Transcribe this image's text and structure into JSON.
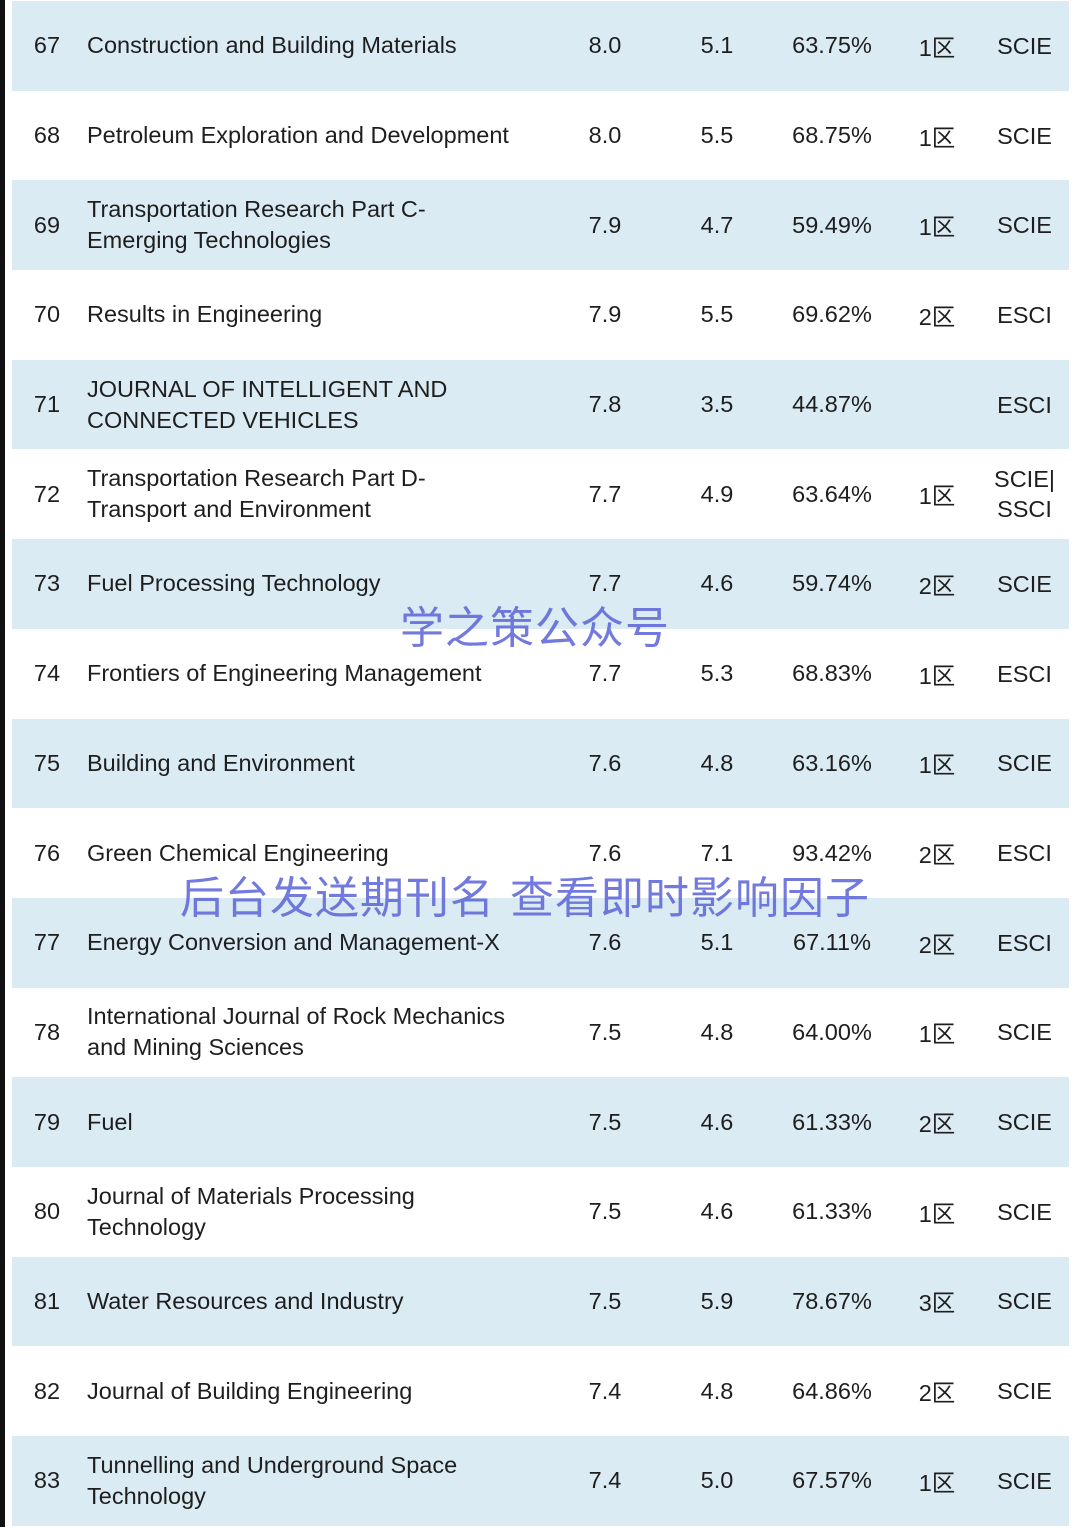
{
  "rows": [
    {
      "rank": "67",
      "name": "Construction and Building Materials",
      "if": "8.0",
      "if5": "5.1",
      "pct": "63.75%",
      "zone": "1区",
      "index": "SCIE"
    },
    {
      "rank": "68",
      "name": "Petroleum Exploration and Development",
      "if": "8.0",
      "if5": "5.5",
      "pct": "68.75%",
      "zone": "1区",
      "index": "SCIE"
    },
    {
      "rank": "69",
      "name": "Transportation Research Part C-\nEmerging Technologies",
      "if": "7.9",
      "if5": "4.7",
      "pct": "59.49%",
      "zone": "1区",
      "index": "SCIE"
    },
    {
      "rank": "70",
      "name": "Results in Engineering",
      "if": "7.9",
      "if5": "5.5",
      "pct": "69.62%",
      "zone": "2区",
      "index": "ESCI"
    },
    {
      "rank": "71",
      "name": "JOURNAL OF INTELLIGENT AND\nCONNECTED VEHICLES",
      "if": "7.8",
      "if5": "3.5",
      "pct": "44.87%",
      "zone": "",
      "index": "ESCI"
    },
    {
      "rank": "72",
      "name": "Transportation Research Part D-\nTransport and Environment",
      "if": "7.7",
      "if5": "4.9",
      "pct": "63.64%",
      "zone": "1区",
      "index": "SCIE|\nSSCI"
    },
    {
      "rank": "73",
      "name": "Fuel Processing Technology",
      "if": "7.7",
      "if5": "4.6",
      "pct": "59.74%",
      "zone": "2区",
      "index": "SCIE"
    },
    {
      "rank": "74",
      "name": "Frontiers of Engineering Management",
      "if": "7.7",
      "if5": "5.3",
      "pct": "68.83%",
      "zone": "1区",
      "index": "ESCI"
    },
    {
      "rank": "75",
      "name": "Building and Environment",
      "if": "7.6",
      "if5": "4.8",
      "pct": "63.16%",
      "zone": "1区",
      "index": "SCIE"
    },
    {
      "rank": "76",
      "name": "Green Chemical Engineering",
      "if": "7.6",
      "if5": "7.1",
      "pct": "93.42%",
      "zone": "2区",
      "index": "ESCI"
    },
    {
      "rank": "77",
      "name": "Energy Conversion and Management-X",
      "if": "7.6",
      "if5": "5.1",
      "pct": "67.11%",
      "zone": "2区",
      "index": "ESCI"
    },
    {
      "rank": "78",
      "name": "International Journal of Rock Mechanics\nand Mining Sciences",
      "if": "7.5",
      "if5": "4.8",
      "pct": "64.00%",
      "zone": "1区",
      "index": "SCIE"
    },
    {
      "rank": "79",
      "name": "Fuel",
      "if": "7.5",
      "if5": "4.6",
      "pct": "61.33%",
      "zone": "2区",
      "index": "SCIE"
    },
    {
      "rank": "80",
      "name": "Journal of Materials Processing\nTechnology",
      "if": "7.5",
      "if5": "4.6",
      "pct": "61.33%",
      "zone": "1区",
      "index": "SCIE"
    },
    {
      "rank": "81",
      "name": "Water Resources and Industry",
      "if": "7.5",
      "if5": "5.9",
      "pct": "78.67%",
      "zone": "3区",
      "index": "SCIE"
    },
    {
      "rank": "82",
      "name": "Journal of Building Engineering",
      "if": "7.4",
      "if5": "4.8",
      "pct": "64.86%",
      "zone": "2区",
      "index": "SCIE"
    },
    {
      "rank": "83",
      "name": "Tunnelling and Underground Space\nTechnology",
      "if": "7.4",
      "if5": "5.0",
      "pct": "67.57%",
      "zone": "1区",
      "index": "SCIE"
    }
  ],
  "watermarks": {
    "account": "学之策公众号",
    "hint": "后台发送期刊名 查看即时影响因子"
  },
  "colors": {
    "row_alt": "#daebf3",
    "watermark": "#5a63d8"
  }
}
